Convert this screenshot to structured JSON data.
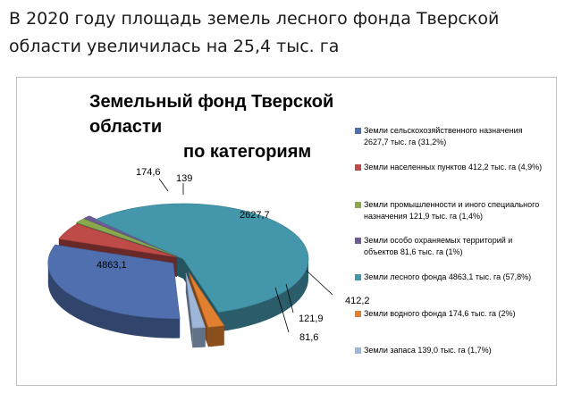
{
  "headline": "В 2020 году площадь земель лесного фонда Тверской области увеличилась на 25,4 тыс. га",
  "chart_data": {
    "type": "pie",
    "title": [
      "Земельный фонд Тверской области",
      "по категориям"
    ],
    "legend_position": "right",
    "slices": [
      {
        "label": "Земли сельскохозяйственного назначения 2627,7 тыс. га (31,2%)",
        "value": 2627.7,
        "value_label": "2627,7",
        "percent": 31.2,
        "color": "#4f6fae"
      },
      {
        "label": "Земли населенных пунктов 412,2 тыс. га (4,9%)",
        "value": 412.2,
        "value_label": "412,2",
        "percent": 4.9,
        "color": "#be4b48"
      },
      {
        "label": "Земли промышленности и иного специального назначения 121,9 тыс. га (1,4%)",
        "value": 121.9,
        "value_label": "121,9",
        "percent": 1.4,
        "color": "#8aa84c"
      },
      {
        "label": "Земли особо охраняемых территорий и объектов 81,6 тыс. га (1%)",
        "value": 81.6,
        "value_label": "81,6",
        "percent": 1.0,
        "color": "#6e5a95"
      },
      {
        "label": "Земли лесного фонда 4863,1 тыс. га (57,8%)",
        "value": 4863.1,
        "value_label": "4863,1",
        "percent": 57.8,
        "color": "#4496aa"
      },
      {
        "label": "Земли водного фонда 174,6 тыс. га (2%)",
        "value": 174.6,
        "value_label": "174,6",
        "percent": 2.0,
        "color": "#e07f30"
      },
      {
        "label": "Земли запаса 139,0 тыс. га (1,7%)",
        "value": 139.0,
        "value_label": "139",
        "percent": 1.7,
        "color": "#9db6da"
      }
    ]
  }
}
